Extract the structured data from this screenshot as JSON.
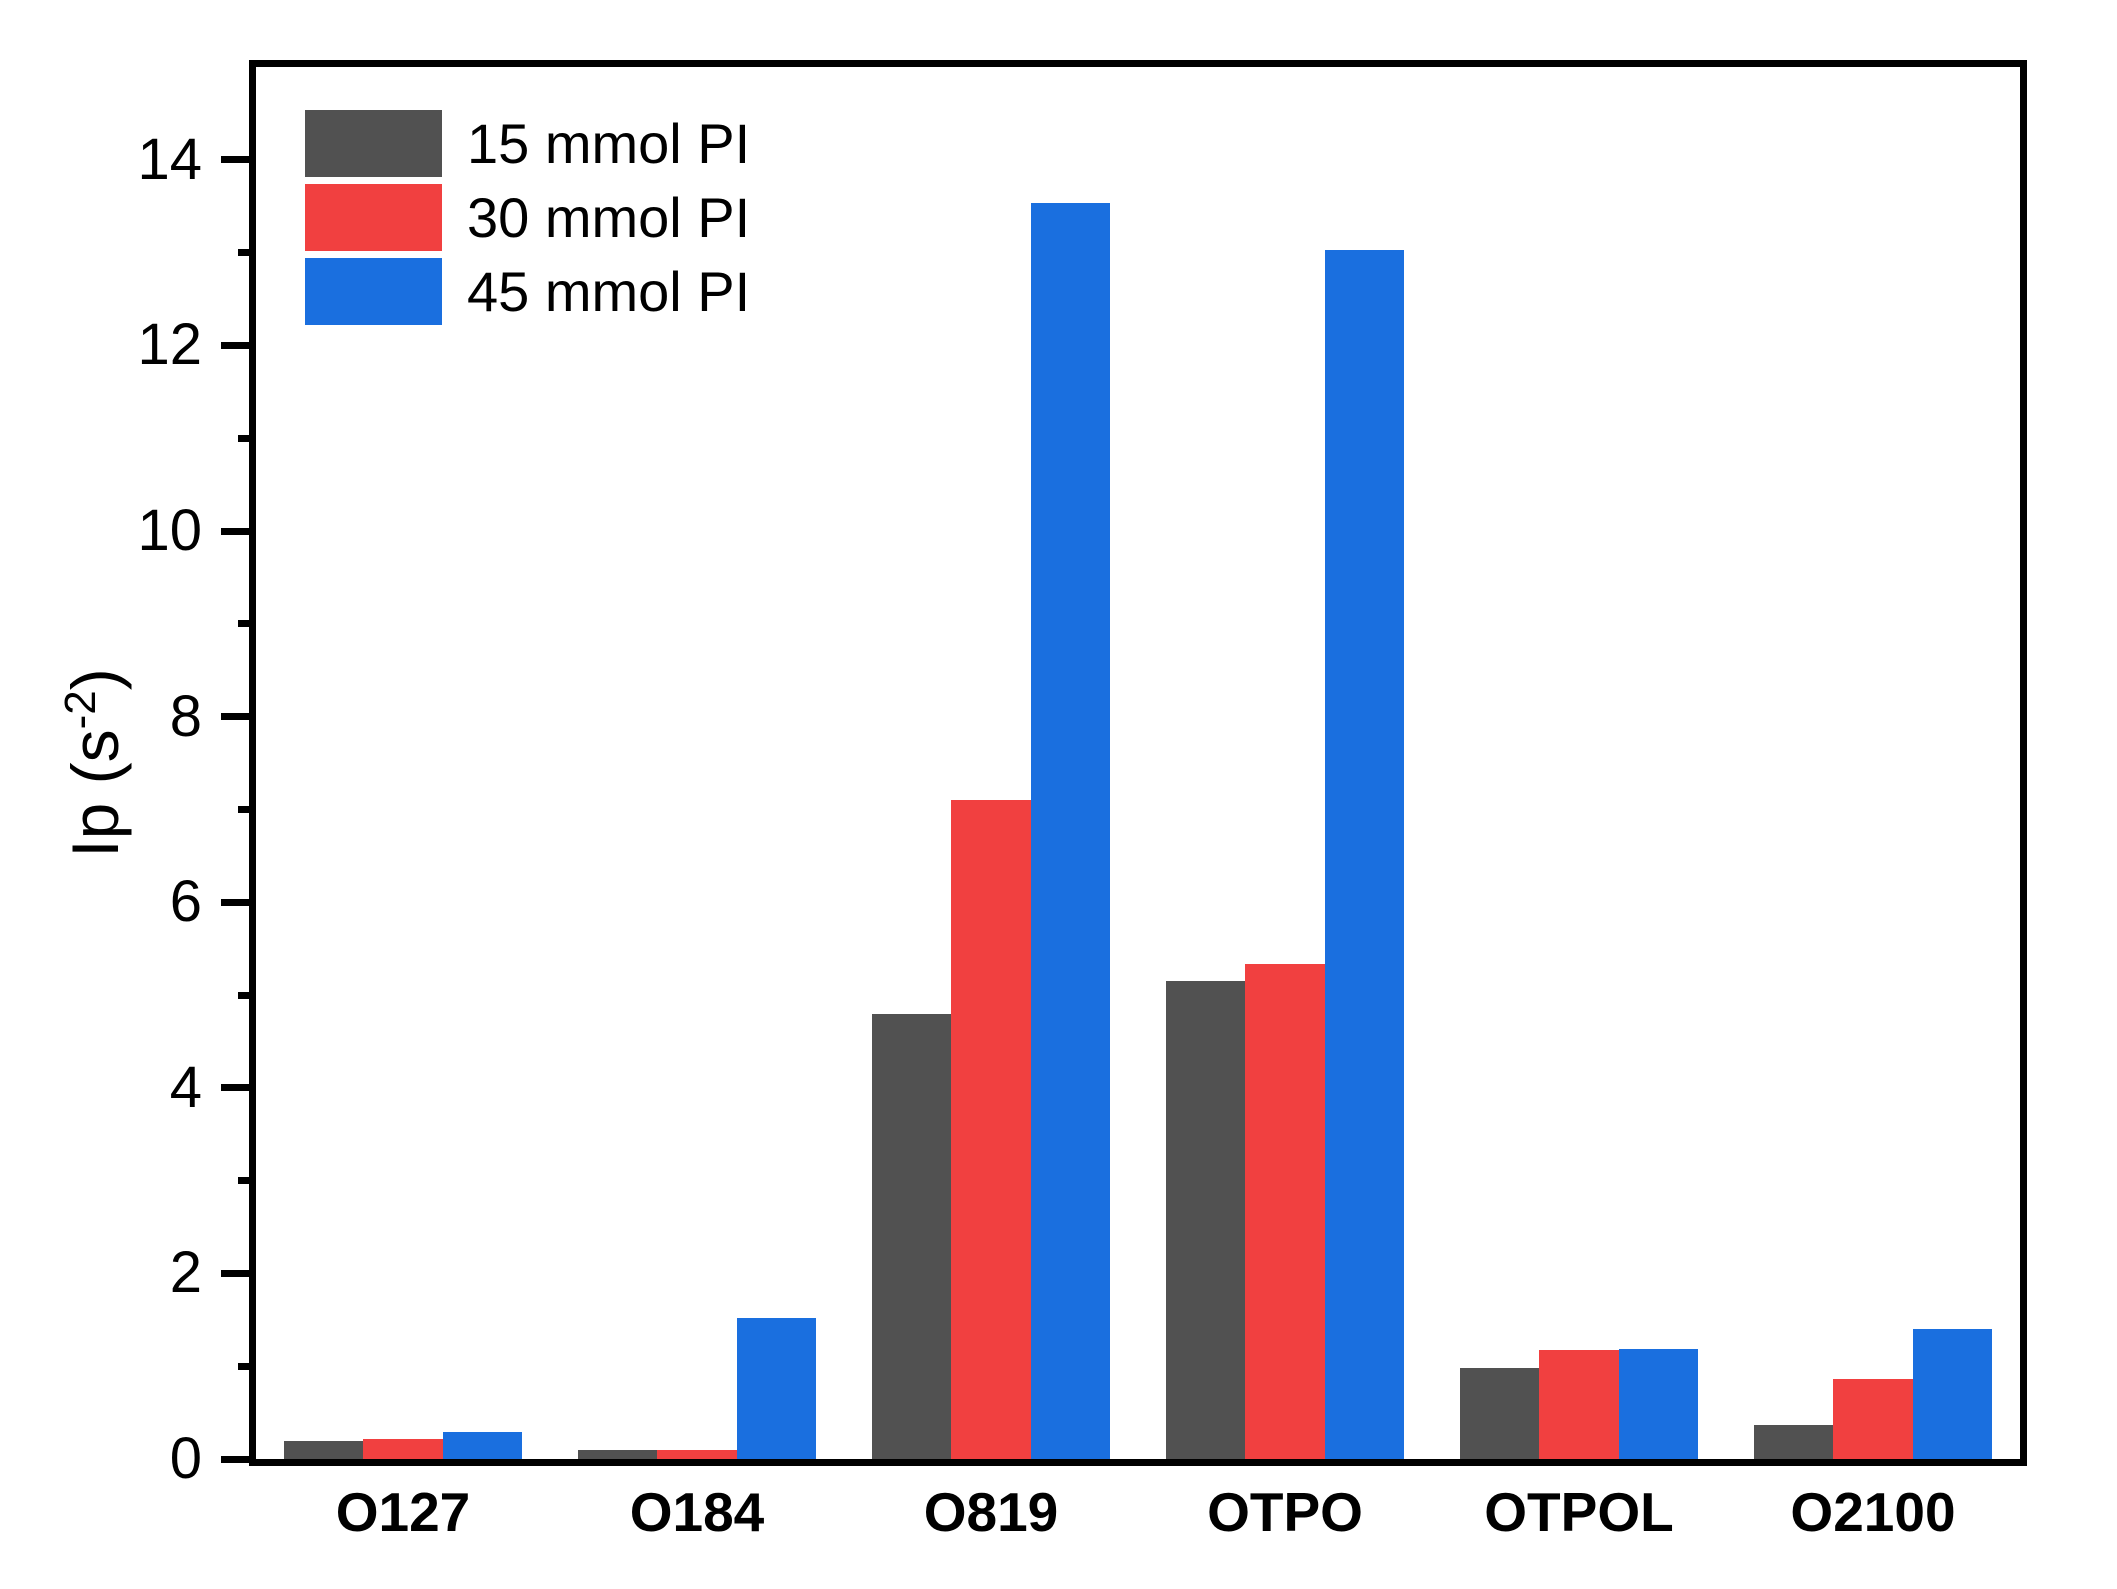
{
  "figure": {
    "background_color": "#ffffff",
    "axis_color": "#000000"
  },
  "chart_data": {
    "type": "bar",
    "title": "",
    "xlabel": "",
    "ylabel": {
      "base": "Ip (s",
      "superscript": "-2",
      "close": ")"
    },
    "categories": [
      "O127",
      "O184",
      "O819",
      "OTPO",
      "OTPOL",
      "O2100"
    ],
    "series": [
      {
        "name": "15 mmol PI",
        "color": "#515151",
        "values": [
          0.19,
          0.1,
          4.8,
          5.15,
          0.98,
          0.37
        ]
      },
      {
        "name": "30 mmol PI",
        "color": "#F14040",
        "values": [
          0.22,
          0.1,
          7.1,
          5.33,
          1.17,
          0.86
        ]
      },
      {
        "name": "45 mmol PI",
        "color": "#1A6FDF",
        "values": [
          0.29,
          1.52,
          13.54,
          13.03,
          1.19,
          1.4
        ]
      }
    ],
    "ylim": [
      0,
      15
    ],
    "yticks_major": [
      0,
      2,
      4,
      6,
      8,
      10,
      12,
      14
    ],
    "yticks_minor": [
      1,
      3,
      5,
      7,
      9,
      11,
      13
    ],
    "grid": false,
    "legend_position": "top-left-inside"
  }
}
